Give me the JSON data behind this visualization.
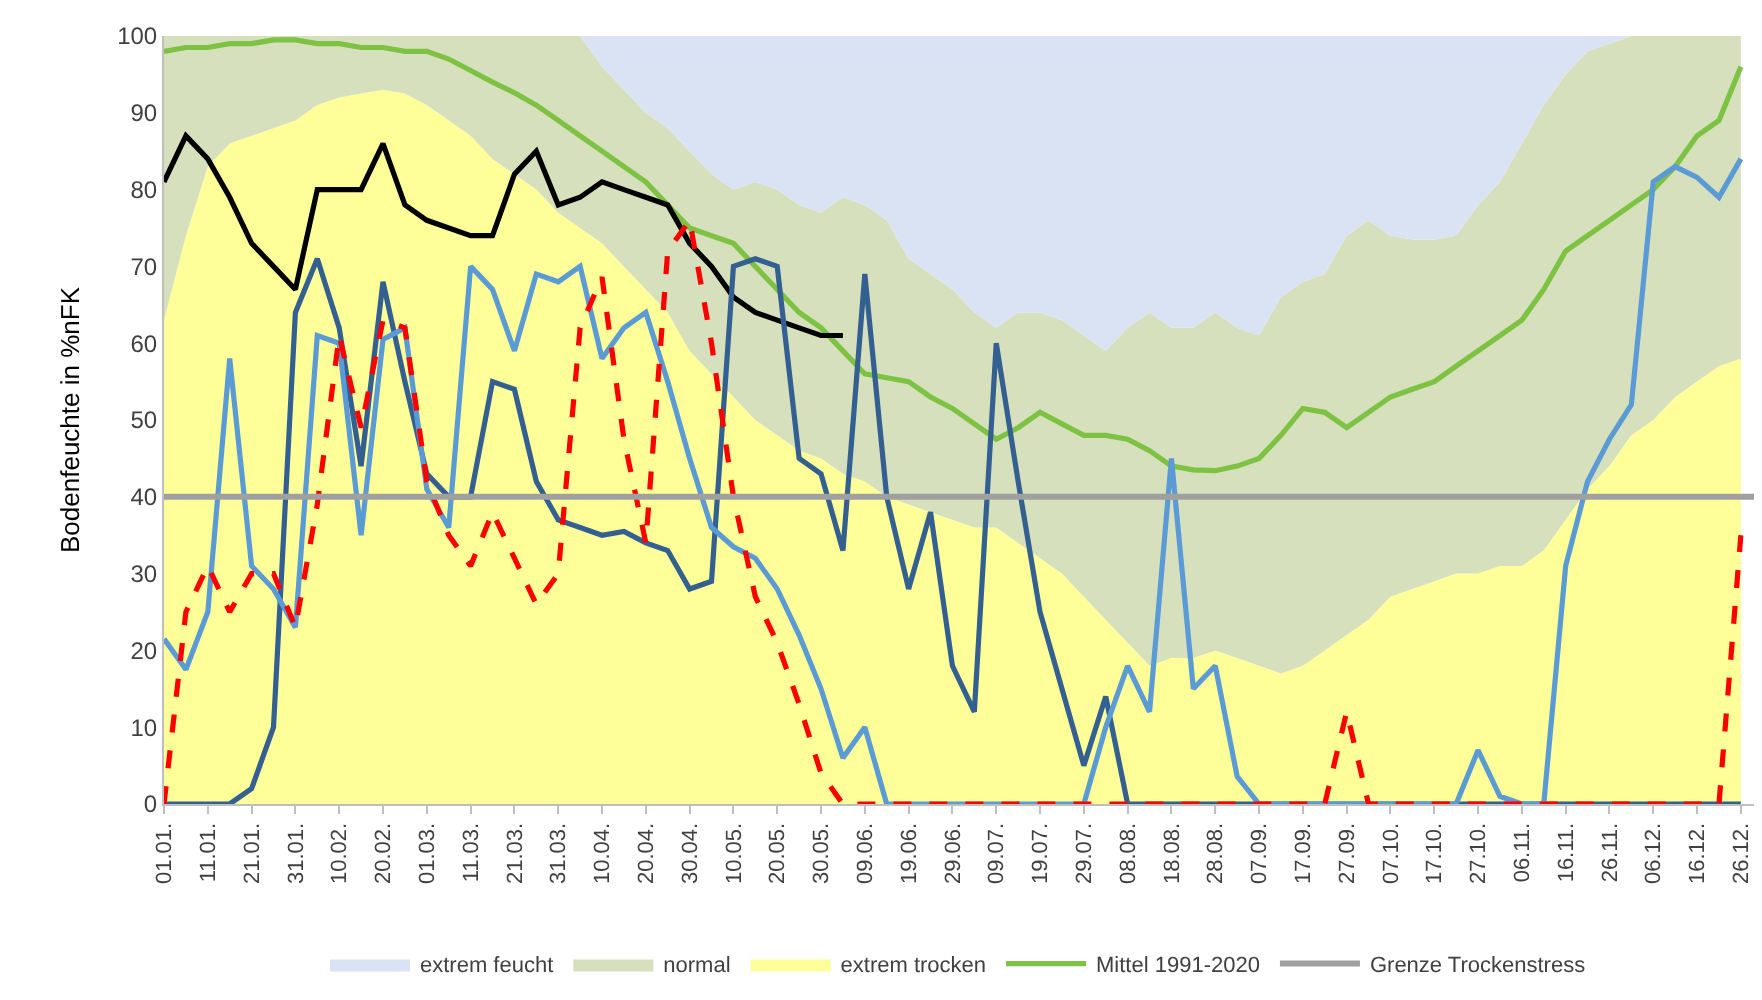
{
  "chart_data": {
    "type": "line",
    "ylabel": "Bodenfeuchte in %nFK",
    "x": [
      "--01-01",
      "--01-06",
      "--01-11",
      "--01-16",
      "--01-21",
      "--01-26",
      "--01-31",
      "--02-05",
      "--02-10",
      "--02-15",
      "--02-20",
      "--02-25",
      "--03-01",
      "--03-06",
      "--03-11",
      "--03-16",
      "--03-21",
      "--03-26",
      "--03-31",
      "--04-05",
      "--04-10",
      "--04-15",
      "--04-20",
      "--04-25",
      "--04-30",
      "--05-05",
      "--05-10",
      "--05-15",
      "--05-20",
      "--05-25",
      "--05-30",
      "--06-04",
      "--06-09",
      "--06-14",
      "--06-19",
      "--06-24",
      "--06-29",
      "--07-04",
      "--07-09",
      "--07-14",
      "--07-19",
      "--07-24",
      "--07-29",
      "--08-03",
      "--08-08",
      "--08-13",
      "--08-18",
      "--08-23",
      "--08-28",
      "--09-02",
      "--09-07",
      "--09-12",
      "--09-17",
      "--09-22",
      "--09-27",
      "--10-02",
      "--10-07",
      "--10-12",
      "--10-17",
      "--10-22",
      "--10-27",
      "--11-01",
      "--11-06",
      "--11-11",
      "--11-16",
      "--11-21",
      "--11-26",
      "--12-01",
      "--12-06",
      "--12-11",
      "--12-16",
      "--12-21",
      "--12-26"
    ],
    "series": [
      {
        "name": "extrem feucht",
        "type": "area",
        "color": "#dae3f3",
        "values": [
          100,
          100,
          100,
          100,
          100,
          100,
          100,
          100,
          100,
          100,
          100,
          100,
          100,
          100,
          100,
          100,
          100,
          100,
          100,
          100,
          100,
          100,
          100,
          100,
          100,
          100,
          100,
          100,
          100,
          100,
          100,
          100,
          100,
          100,
          100,
          100,
          100,
          100,
          100,
          100,
          100,
          100,
          100,
          100,
          100,
          100,
          100,
          100,
          100,
          100,
          100,
          100,
          100,
          100,
          100,
          100,
          100,
          100,
          100,
          100,
          100,
          100,
          100,
          100,
          100,
          100,
          100,
          100,
          100,
          100,
          100,
          100,
          100
        ]
      },
      {
        "name": "normal",
        "type": "area",
        "color": "#d6e0bd",
        "values": [
          100,
          100,
          100,
          100,
          100,
          100,
          100,
          100,
          100,
          100,
          100,
          100,
          100,
          100,
          100,
          100,
          100,
          100,
          100,
          100,
          96,
          93,
          90,
          88,
          85,
          82,
          80,
          81,
          80,
          78,
          77,
          79,
          78,
          76,
          71,
          69,
          67,
          64,
          62,
          64,
          64,
          63,
          61,
          59,
          62,
          64,
          62,
          62,
          64,
          62,
          61,
          66,
          68,
          69,
          74,
          76,
          74,
          73.5,
          73.5,
          74,
          78,
          81,
          86,
          91,
          95,
          98,
          99,
          100,
          100,
          100,
          100,
          100,
          100
        ]
      },
      {
        "name": "extrem trocken",
        "type": "area",
        "color": "#ffff99",
        "values": [
          63,
          74,
          83,
          86,
          87,
          88,
          89,
          91,
          92,
          92.5,
          93,
          92.5,
          91,
          89,
          87,
          84,
          82,
          80,
          77,
          75,
          73,
          70,
          67,
          64,
          59,
          56,
          53,
          50,
          48,
          46,
          45,
          43,
          42,
          40,
          39,
          38,
          37,
          36,
          36,
          34,
          32,
          30,
          27,
          24,
          21,
          18,
          19,
          19,
          20,
          19,
          18,
          17,
          18,
          20,
          22,
          24,
          27,
          28,
          29,
          30,
          30,
          31,
          31,
          33,
          37,
          41,
          44,
          48,
          50,
          53,
          55,
          57,
          58
        ]
      },
      {
        "name": "Mittel 1991-2020",
        "color": "#7dc242",
        "values": [
          98,
          98.5,
          98.5,
          99,
          99,
          99.5,
          99.5,
          99,
          99,
          98.5,
          98.5,
          98,
          98,
          97,
          95.5,
          94,
          92.6,
          91,
          89,
          87,
          85,
          83,
          81,
          78,
          75,
          74,
          73,
          70,
          67,
          64,
          62,
          59,
          56,
          55.5,
          55,
          53,
          51.5,
          49.5,
          47.5,
          49,
          51,
          49.5,
          48,
          48,
          47.5,
          46,
          44,
          43.5,
          43.4,
          44,
          45,
          48,
          51.5,
          51,
          49,
          51,
          53,
          54,
          55,
          57,
          59,
          61,
          63,
          67,
          72,
          74,
          76,
          78,
          80,
          83,
          87,
          89,
          96
        ]
      },
      {
        "color": "#000000",
        "values": [
          81,
          87,
          84,
          79,
          73,
          70,
          67,
          80,
          80,
          80,
          86,
          78,
          76,
          75,
          74,
          74,
          82,
          85,
          78,
          79,
          81,
          80,
          79,
          78,
          73,
          70,
          66,
          64,
          63,
          62,
          61,
          61,
          null,
          null,
          null,
          null,
          null,
          null,
          null,
          null,
          null,
          null,
          null,
          null,
          null,
          null,
          null,
          null,
          null,
          null,
          null,
          null,
          null,
          null,
          null,
          null,
          null,
          null,
          null,
          null,
          null,
          null,
          null,
          null,
          null,
          null,
          null,
          null,
          null,
          null,
          null,
          null,
          null
        ]
      },
      {
        "color": "#335f91",
        "values": [
          0,
          0,
          0,
          0,
          2,
          10,
          64,
          71,
          62,
          44,
          68,
          55,
          43,
          40,
          40,
          55,
          54,
          42,
          37,
          36,
          35,
          35.5,
          34,
          33,
          28,
          29,
          70,
          71,
          70,
          45,
          43,
          33,
          69,
          40,
          28,
          38,
          18,
          12,
          60,
          42,
          25,
          15,
          5,
          14,
          0,
          0,
          0,
          0,
          0,
          0,
          0,
          0,
          0,
          0,
          0,
          0,
          0,
          0,
          0,
          0,
          0,
          0,
          0,
          0,
          0,
          0,
          0,
          0,
          0,
          0,
          0,
          0,
          0
        ]
      },
      {
        "color": "#5b9bd5",
        "values": [
          21.5,
          17.5,
          25,
          58,
          31,
          28,
          23,
          61,
          60,
          35,
          60.5,
          62,
          41,
          36,
          70,
          67,
          59,
          69,
          68,
          70,
          58,
          62,
          64,
          55,
          45,
          36,
          33.5,
          32,
          28,
          22,
          15,
          6,
          10,
          0,
          0,
          0,
          0,
          0,
          0,
          0,
          0,
          0,
          0,
          10,
          18,
          12,
          45,
          15,
          18,
          3.6,
          0,
          0,
          0,
          0,
          0,
          0,
          0,
          0,
          0,
          0,
          7,
          1,
          0,
          0,
          31,
          42,
          47.5,
          52,
          81,
          83,
          81.6,
          79,
          84
        ]
      },
      {
        "color": "#ff0000",
        "line_style": "dashed",
        "values": [
          0,
          25,
          31,
          25,
          30,
          30,
          23,
          39,
          61,
          49,
          63,
          62,
          42,
          35,
          31,
          38,
          32,
          26,
          30,
          62,
          68.6,
          47.5,
          34,
          72,
          76,
          60,
          40,
          27,
          21,
          13,
          4,
          0,
          0,
          0,
          0,
          0,
          0,
          0,
          0,
          0,
          0,
          0,
          0,
          0,
          0,
          0,
          0,
          0,
          0,
          0,
          0,
          0,
          0,
          0,
          12,
          0,
          0,
          0,
          0,
          0,
          0,
          0,
          0,
          0,
          0,
          0,
          0,
          0,
          0,
          0,
          0,
          0,
          35
        ]
      }
    ],
    "ref_lines": [
      {
        "axis": "y",
        "value": 40,
        "label": "Grenze Trockenstress",
        "color": "#a0a0a0"
      }
    ],
    "xlim": [
      "--01-01",
      "--12-29"
    ],
    "xticks": [
      {
        "value": "--01-01",
        "label": "01.01."
      },
      {
        "value": "--01-11",
        "label": "11.01."
      },
      {
        "value": "--01-21",
        "label": "21.01."
      },
      {
        "value": "--01-31",
        "label": "31.01."
      },
      {
        "value": "--02-10",
        "label": "10.02."
      },
      {
        "value": "--02-20",
        "label": "20.02."
      },
      {
        "value": "--03-01",
        "label": "01.03."
      },
      {
        "value": "--03-11",
        "label": "11.03."
      },
      {
        "value": "--03-21",
        "label": "21.03."
      },
      {
        "value": "--03-31",
        "label": "31.03."
      },
      {
        "value": "--04-10",
        "label": "10.04."
      },
      {
        "value": "--04-20",
        "label": "20.04."
      },
      {
        "value": "--04-30",
        "label": "30.04."
      },
      {
        "value": "--05-10",
        "label": "10.05."
      },
      {
        "value": "--05-20",
        "label": "20.05."
      },
      {
        "value": "--05-30",
        "label": "30.05."
      },
      {
        "value": "--06-09",
        "label": "09.06."
      },
      {
        "value": "--06-19",
        "label": "19.06."
      },
      {
        "value": "--06-29",
        "label": "29.06."
      },
      {
        "value": "--07-09",
        "label": "09.07."
      },
      {
        "value": "--07-19",
        "label": "19.07."
      },
      {
        "value": "--07-29",
        "label": "29.07."
      },
      {
        "value": "--08-08",
        "label": "08.08."
      },
      {
        "value": "--08-18",
        "label": "18.08."
      },
      {
        "value": "--08-28",
        "label": "28.08."
      },
      {
        "value": "--09-07",
        "label": "07.09."
      },
      {
        "value": "--09-17",
        "label": "17.09."
      },
      {
        "value": "--09-27",
        "label": "27.09."
      },
      {
        "value": "--10-07",
        "label": "07.10."
      },
      {
        "value": "--10-17",
        "label": "17.10."
      },
      {
        "value": "--10-27",
        "label": "27.10."
      },
      {
        "value": "--11-06",
        "label": "06.11."
      },
      {
        "value": "--11-16",
        "label": "16.11."
      },
      {
        "value": "--11-26",
        "label": "26.11."
      },
      {
        "value": "--12-06",
        "label": "06.12."
      },
      {
        "value": "--12-16",
        "label": "16.12."
      },
      {
        "value": "--12-26",
        "label": "26.12."
      }
    ],
    "ylim": [
      0,
      100
    ],
    "yticks": [
      0,
      10,
      20,
      30,
      40,
      50,
      60,
      70,
      80,
      90,
      100
    ],
    "legend": "bottom",
    "marker": "none",
    "line_style": "solid"
  }
}
